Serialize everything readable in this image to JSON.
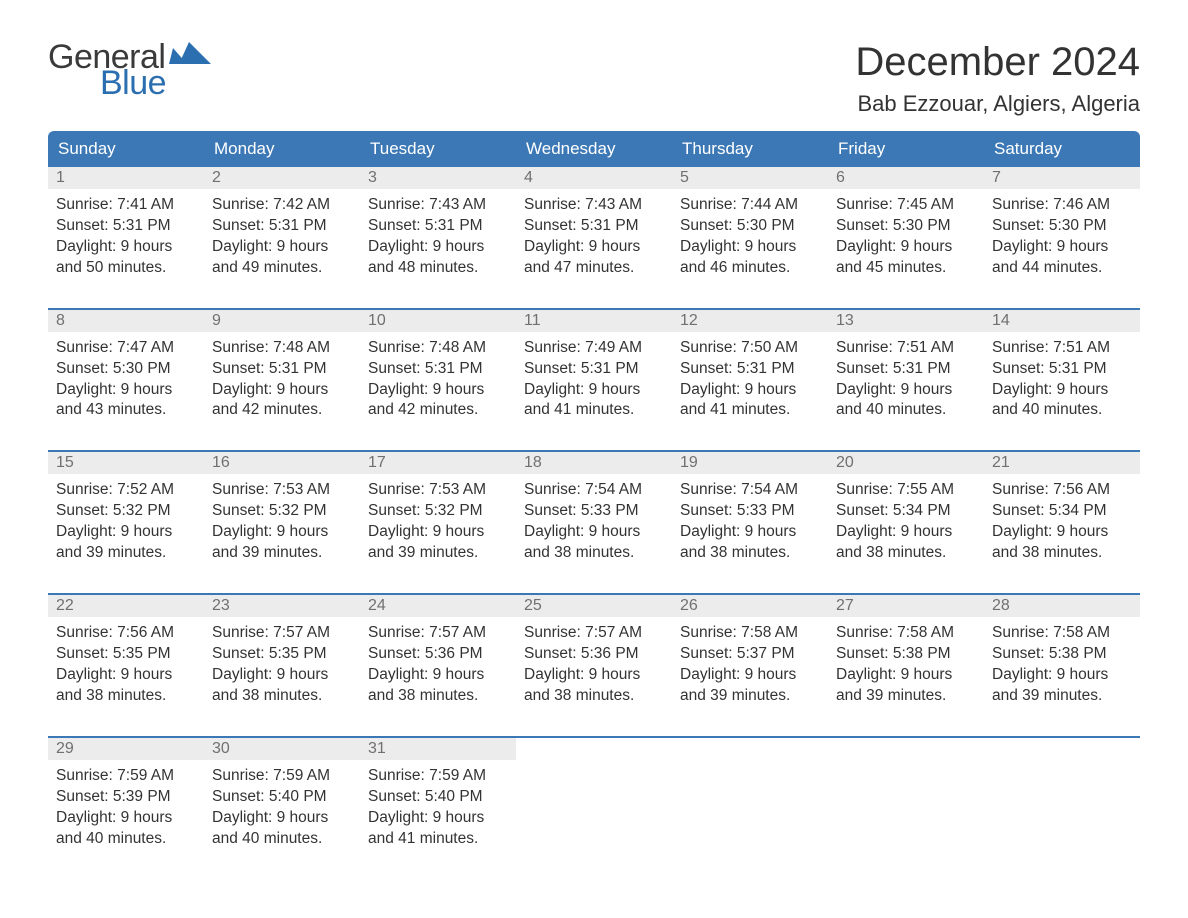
{
  "brand": {
    "word1": "General",
    "word2": "Blue",
    "color_text": "#3a3a3a",
    "color_accent": "#2b6fb0"
  },
  "title": "December 2024",
  "location": "Bab Ezzouar, Algiers, Algeria",
  "colors": {
    "header_bg": "#3b78b5",
    "header_text": "#ffffff",
    "daynum_bg": "#ececec",
    "daynum_text": "#707070",
    "body_text": "#333333",
    "rule": "#3b78b5",
    "page_bg": "#ffffff"
  },
  "typography": {
    "title_fontsize": 40,
    "location_fontsize": 22,
    "header_fontsize": 17,
    "cell_fontsize": 15.5,
    "font_family": "Arial"
  },
  "weekdays": [
    "Sunday",
    "Monday",
    "Tuesday",
    "Wednesday",
    "Thursday",
    "Friday",
    "Saturday"
  ],
  "weeks": [
    [
      {
        "day": "1",
        "sunrise": "Sunrise: 7:41 AM",
        "sunset": "Sunset: 5:31 PM",
        "dl1": "Daylight: 9 hours",
        "dl2": "and 50 minutes."
      },
      {
        "day": "2",
        "sunrise": "Sunrise: 7:42 AM",
        "sunset": "Sunset: 5:31 PM",
        "dl1": "Daylight: 9 hours",
        "dl2": "and 49 minutes."
      },
      {
        "day": "3",
        "sunrise": "Sunrise: 7:43 AM",
        "sunset": "Sunset: 5:31 PM",
        "dl1": "Daylight: 9 hours",
        "dl2": "and 48 minutes."
      },
      {
        "day": "4",
        "sunrise": "Sunrise: 7:43 AM",
        "sunset": "Sunset: 5:31 PM",
        "dl1": "Daylight: 9 hours",
        "dl2": "and 47 minutes."
      },
      {
        "day": "5",
        "sunrise": "Sunrise: 7:44 AM",
        "sunset": "Sunset: 5:30 PM",
        "dl1": "Daylight: 9 hours",
        "dl2": "and 46 minutes."
      },
      {
        "day": "6",
        "sunrise": "Sunrise: 7:45 AM",
        "sunset": "Sunset: 5:30 PM",
        "dl1": "Daylight: 9 hours",
        "dl2": "and 45 minutes."
      },
      {
        "day": "7",
        "sunrise": "Sunrise: 7:46 AM",
        "sunset": "Sunset: 5:30 PM",
        "dl1": "Daylight: 9 hours",
        "dl2": "and 44 minutes."
      }
    ],
    [
      {
        "day": "8",
        "sunrise": "Sunrise: 7:47 AM",
        "sunset": "Sunset: 5:30 PM",
        "dl1": "Daylight: 9 hours",
        "dl2": "and 43 minutes."
      },
      {
        "day": "9",
        "sunrise": "Sunrise: 7:48 AM",
        "sunset": "Sunset: 5:31 PM",
        "dl1": "Daylight: 9 hours",
        "dl2": "and 42 minutes."
      },
      {
        "day": "10",
        "sunrise": "Sunrise: 7:48 AM",
        "sunset": "Sunset: 5:31 PM",
        "dl1": "Daylight: 9 hours",
        "dl2": "and 42 minutes."
      },
      {
        "day": "11",
        "sunrise": "Sunrise: 7:49 AM",
        "sunset": "Sunset: 5:31 PM",
        "dl1": "Daylight: 9 hours",
        "dl2": "and 41 minutes."
      },
      {
        "day": "12",
        "sunrise": "Sunrise: 7:50 AM",
        "sunset": "Sunset: 5:31 PM",
        "dl1": "Daylight: 9 hours",
        "dl2": "and 41 minutes."
      },
      {
        "day": "13",
        "sunrise": "Sunrise: 7:51 AM",
        "sunset": "Sunset: 5:31 PM",
        "dl1": "Daylight: 9 hours",
        "dl2": "and 40 minutes."
      },
      {
        "day": "14",
        "sunrise": "Sunrise: 7:51 AM",
        "sunset": "Sunset: 5:31 PM",
        "dl1": "Daylight: 9 hours",
        "dl2": "and 40 minutes."
      }
    ],
    [
      {
        "day": "15",
        "sunrise": "Sunrise: 7:52 AM",
        "sunset": "Sunset: 5:32 PM",
        "dl1": "Daylight: 9 hours",
        "dl2": "and 39 minutes."
      },
      {
        "day": "16",
        "sunrise": "Sunrise: 7:53 AM",
        "sunset": "Sunset: 5:32 PM",
        "dl1": "Daylight: 9 hours",
        "dl2": "and 39 minutes."
      },
      {
        "day": "17",
        "sunrise": "Sunrise: 7:53 AM",
        "sunset": "Sunset: 5:32 PM",
        "dl1": "Daylight: 9 hours",
        "dl2": "and 39 minutes."
      },
      {
        "day": "18",
        "sunrise": "Sunrise: 7:54 AM",
        "sunset": "Sunset: 5:33 PM",
        "dl1": "Daylight: 9 hours",
        "dl2": "and 38 minutes."
      },
      {
        "day": "19",
        "sunrise": "Sunrise: 7:54 AM",
        "sunset": "Sunset: 5:33 PM",
        "dl1": "Daylight: 9 hours",
        "dl2": "and 38 minutes."
      },
      {
        "day": "20",
        "sunrise": "Sunrise: 7:55 AM",
        "sunset": "Sunset: 5:34 PM",
        "dl1": "Daylight: 9 hours",
        "dl2": "and 38 minutes."
      },
      {
        "day": "21",
        "sunrise": "Sunrise: 7:56 AM",
        "sunset": "Sunset: 5:34 PM",
        "dl1": "Daylight: 9 hours",
        "dl2": "and 38 minutes."
      }
    ],
    [
      {
        "day": "22",
        "sunrise": "Sunrise: 7:56 AM",
        "sunset": "Sunset: 5:35 PM",
        "dl1": "Daylight: 9 hours",
        "dl2": "and 38 minutes."
      },
      {
        "day": "23",
        "sunrise": "Sunrise: 7:57 AM",
        "sunset": "Sunset: 5:35 PM",
        "dl1": "Daylight: 9 hours",
        "dl2": "and 38 minutes."
      },
      {
        "day": "24",
        "sunrise": "Sunrise: 7:57 AM",
        "sunset": "Sunset: 5:36 PM",
        "dl1": "Daylight: 9 hours",
        "dl2": "and 38 minutes."
      },
      {
        "day": "25",
        "sunrise": "Sunrise: 7:57 AM",
        "sunset": "Sunset: 5:36 PM",
        "dl1": "Daylight: 9 hours",
        "dl2": "and 38 minutes."
      },
      {
        "day": "26",
        "sunrise": "Sunrise: 7:58 AM",
        "sunset": "Sunset: 5:37 PM",
        "dl1": "Daylight: 9 hours",
        "dl2": "and 39 minutes."
      },
      {
        "day": "27",
        "sunrise": "Sunrise: 7:58 AM",
        "sunset": "Sunset: 5:38 PM",
        "dl1": "Daylight: 9 hours",
        "dl2": "and 39 minutes."
      },
      {
        "day": "28",
        "sunrise": "Sunrise: 7:58 AM",
        "sunset": "Sunset: 5:38 PM",
        "dl1": "Daylight: 9 hours",
        "dl2": "and 39 minutes."
      }
    ],
    [
      {
        "day": "29",
        "sunrise": "Sunrise: 7:59 AM",
        "sunset": "Sunset: 5:39 PM",
        "dl1": "Daylight: 9 hours",
        "dl2": "and 40 minutes."
      },
      {
        "day": "30",
        "sunrise": "Sunrise: 7:59 AM",
        "sunset": "Sunset: 5:40 PM",
        "dl1": "Daylight: 9 hours",
        "dl2": "and 40 minutes."
      },
      {
        "day": "31",
        "sunrise": "Sunrise: 7:59 AM",
        "sunset": "Sunset: 5:40 PM",
        "dl1": "Daylight: 9 hours",
        "dl2": "and 41 minutes."
      },
      null,
      null,
      null,
      null
    ]
  ]
}
